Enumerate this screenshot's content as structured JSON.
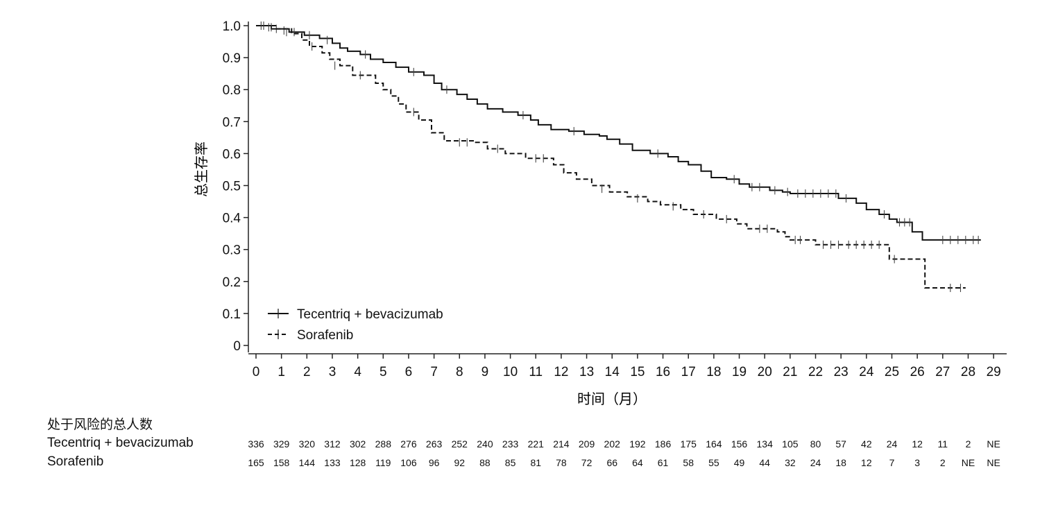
{
  "chart_data": {
    "type": "line",
    "subtype": "kaplan-meier",
    "ylabel": "总生存率",
    "xlabel": "时间（月）",
    "xlim": [
      0,
      29
    ],
    "ylim": [
      0,
      1.0
    ],
    "xticks": [
      0,
      1,
      2,
      3,
      4,
      5,
      6,
      7,
      8,
      9,
      10,
      11,
      12,
      13,
      14,
      15,
      16,
      17,
      18,
      19,
      20,
      21,
      22,
      23,
      24,
      25,
      26,
      27,
      28,
      29
    ],
    "yticks": [
      "0",
      "0.1",
      "0.2",
      "0.3",
      "0.4",
      "0.5",
      "0.6",
      "0.7",
      "0.8",
      "0.9",
      "1.0"
    ],
    "legend_position": "bottom-left",
    "series": [
      {
        "name": "Tecentriq + bevacizumab",
        "style": "solid",
        "color": "#111111",
        "steps": [
          [
            0,
            1.0
          ],
          [
            0.6,
            0.99
          ],
          [
            1.3,
            0.98
          ],
          [
            1.9,
            0.97
          ],
          [
            2.5,
            0.96
          ],
          [
            3.0,
            0.945
          ],
          [
            3.3,
            0.93
          ],
          [
            3.6,
            0.92
          ],
          [
            4.1,
            0.91
          ],
          [
            4.5,
            0.895
          ],
          [
            5.0,
            0.885
          ],
          [
            5.5,
            0.87
          ],
          [
            6.0,
            0.855
          ],
          [
            6.6,
            0.845
          ],
          [
            7.0,
            0.82
          ],
          [
            7.3,
            0.8
          ],
          [
            7.9,
            0.785
          ],
          [
            8.3,
            0.77
          ],
          [
            8.7,
            0.755
          ],
          [
            9.1,
            0.74
          ],
          [
            9.7,
            0.73
          ],
          [
            10.3,
            0.72
          ],
          [
            10.8,
            0.705
          ],
          [
            11.1,
            0.69
          ],
          [
            11.6,
            0.675
          ],
          [
            12.3,
            0.67
          ],
          [
            12.9,
            0.66
          ],
          [
            13.5,
            0.655
          ],
          [
            13.8,
            0.645
          ],
          [
            14.3,
            0.63
          ],
          [
            14.8,
            0.61
          ],
          [
            15.5,
            0.6
          ],
          [
            16.2,
            0.59
          ],
          [
            16.6,
            0.575
          ],
          [
            17.0,
            0.565
          ],
          [
            17.5,
            0.545
          ],
          [
            17.9,
            0.525
          ],
          [
            18.5,
            0.52
          ],
          [
            19.0,
            0.505
          ],
          [
            19.4,
            0.495
          ],
          [
            20.2,
            0.485
          ],
          [
            20.7,
            0.48
          ],
          [
            21.0,
            0.475
          ],
          [
            22.9,
            0.46
          ],
          [
            23.6,
            0.445
          ],
          [
            24.0,
            0.425
          ],
          [
            24.5,
            0.41
          ],
          [
            24.9,
            0.395
          ],
          [
            25.2,
            0.385
          ],
          [
            25.8,
            0.355
          ],
          [
            26.2,
            0.33
          ],
          [
            28.5,
            0.33
          ]
        ],
        "censor_marks": [
          [
            0.2,
            1.0
          ],
          [
            0.5,
            0.995
          ],
          [
            0.8,
            0.99
          ],
          [
            1.1,
            0.985
          ],
          [
            1.5,
            0.98
          ],
          [
            2.1,
            0.97
          ],
          [
            2.8,
            0.955
          ],
          [
            4.3,
            0.91
          ],
          [
            6.2,
            0.855
          ],
          [
            7.5,
            0.8
          ],
          [
            10.5,
            0.72
          ],
          [
            12.5,
            0.67
          ],
          [
            15.8,
            0.6
          ],
          [
            18.8,
            0.52
          ],
          [
            19.5,
            0.495
          ],
          [
            19.8,
            0.495
          ],
          [
            20.4,
            0.485
          ],
          [
            20.9,
            0.48
          ],
          [
            21.3,
            0.475
          ],
          [
            21.6,
            0.475
          ],
          [
            21.9,
            0.475
          ],
          [
            22.2,
            0.475
          ],
          [
            22.5,
            0.475
          ],
          [
            22.8,
            0.475
          ],
          [
            23.2,
            0.46
          ],
          [
            24.7,
            0.41
          ],
          [
            25.3,
            0.385
          ],
          [
            25.5,
            0.385
          ],
          [
            25.7,
            0.385
          ],
          [
            27.0,
            0.33
          ],
          [
            27.3,
            0.33
          ],
          [
            27.6,
            0.33
          ],
          [
            27.9,
            0.33
          ],
          [
            28.2,
            0.33
          ],
          [
            28.4,
            0.33
          ]
        ]
      },
      {
        "name": "Sorafenib",
        "style": "dashed",
        "color": "#111111",
        "steps": [
          [
            0,
            1.0
          ],
          [
            0.8,
            0.99
          ],
          [
            1.4,
            0.975
          ],
          [
            1.8,
            0.955
          ],
          [
            2.1,
            0.935
          ],
          [
            2.6,
            0.915
          ],
          [
            2.9,
            0.895
          ],
          [
            3.3,
            0.875
          ],
          [
            3.8,
            0.845
          ],
          [
            4.7,
            0.82
          ],
          [
            5.0,
            0.8
          ],
          [
            5.3,
            0.78
          ],
          [
            5.6,
            0.755
          ],
          [
            5.9,
            0.73
          ],
          [
            6.4,
            0.705
          ],
          [
            6.9,
            0.665
          ],
          [
            7.4,
            0.64
          ],
          [
            8.6,
            0.635
          ],
          [
            9.1,
            0.615
          ],
          [
            9.8,
            0.6
          ],
          [
            10.6,
            0.585
          ],
          [
            11.7,
            0.565
          ],
          [
            12.1,
            0.54
          ],
          [
            12.6,
            0.52
          ],
          [
            13.2,
            0.5
          ],
          [
            13.9,
            0.48
          ],
          [
            14.6,
            0.465
          ],
          [
            15.4,
            0.45
          ],
          [
            15.9,
            0.44
          ],
          [
            16.7,
            0.425
          ],
          [
            17.2,
            0.41
          ],
          [
            18.1,
            0.395
          ],
          [
            18.9,
            0.38
          ],
          [
            19.3,
            0.365
          ],
          [
            20.5,
            0.355
          ],
          [
            20.8,
            0.34
          ],
          [
            21.0,
            0.33
          ],
          [
            22.0,
            0.315
          ],
          [
            24.9,
            0.27
          ],
          [
            26.3,
            0.18
          ],
          [
            27.9,
            0.18
          ]
        ],
        "censor_marks": [
          [
            0.3,
            1.0
          ],
          [
            0.6,
            0.995
          ],
          [
            1.2,
            0.98
          ],
          [
            2.2,
            0.935
          ],
          [
            3.1,
            0.875
          ],
          [
            4.1,
            0.845
          ],
          [
            6.2,
            0.73
          ],
          [
            8.0,
            0.635
          ],
          [
            8.3,
            0.635
          ],
          [
            9.5,
            0.615
          ],
          [
            11.0,
            0.585
          ],
          [
            11.3,
            0.585
          ],
          [
            13.6,
            0.49
          ],
          [
            15.0,
            0.46
          ],
          [
            16.4,
            0.435
          ],
          [
            17.6,
            0.41
          ],
          [
            18.5,
            0.395
          ],
          [
            19.8,
            0.365
          ],
          [
            20.1,
            0.365
          ],
          [
            21.2,
            0.33
          ],
          [
            21.4,
            0.33
          ],
          [
            22.3,
            0.315
          ],
          [
            22.6,
            0.315
          ],
          [
            22.9,
            0.315
          ],
          [
            23.3,
            0.315
          ],
          [
            23.6,
            0.315
          ],
          [
            23.9,
            0.315
          ],
          [
            24.2,
            0.315
          ],
          [
            24.5,
            0.315
          ],
          [
            25.1,
            0.27
          ],
          [
            27.3,
            0.18
          ],
          [
            27.7,
            0.18
          ]
        ]
      }
    ]
  },
  "risk_table": {
    "title": "处于风险的总人数",
    "rows": [
      {
        "label": "Tecentriq + bevacizumab",
        "values": [
          "336",
          "329",
          "320",
          "312",
          "302",
          "288",
          "276",
          "263",
          "252",
          "240",
          "233",
          "221",
          "214",
          "209",
          "202",
          "192",
          "186",
          "175",
          "164",
          "156",
          "134",
          "105",
          "80",
          "57",
          "42",
          "24",
          "12",
          "11",
          "2",
          "NE"
        ]
      },
      {
        "label": "Sorafenib",
        "values": [
          "165",
          "158",
          "144",
          "133",
          "128",
          "119",
          "106",
          "96",
          "92",
          "88",
          "85",
          "81",
          "78",
          "72",
          "66",
          "64",
          "61",
          "58",
          "55",
          "49",
          "44",
          "32",
          "24",
          "18",
          "12",
          "7",
          "3",
          "2",
          "NE",
          "NE"
        ]
      }
    ]
  }
}
